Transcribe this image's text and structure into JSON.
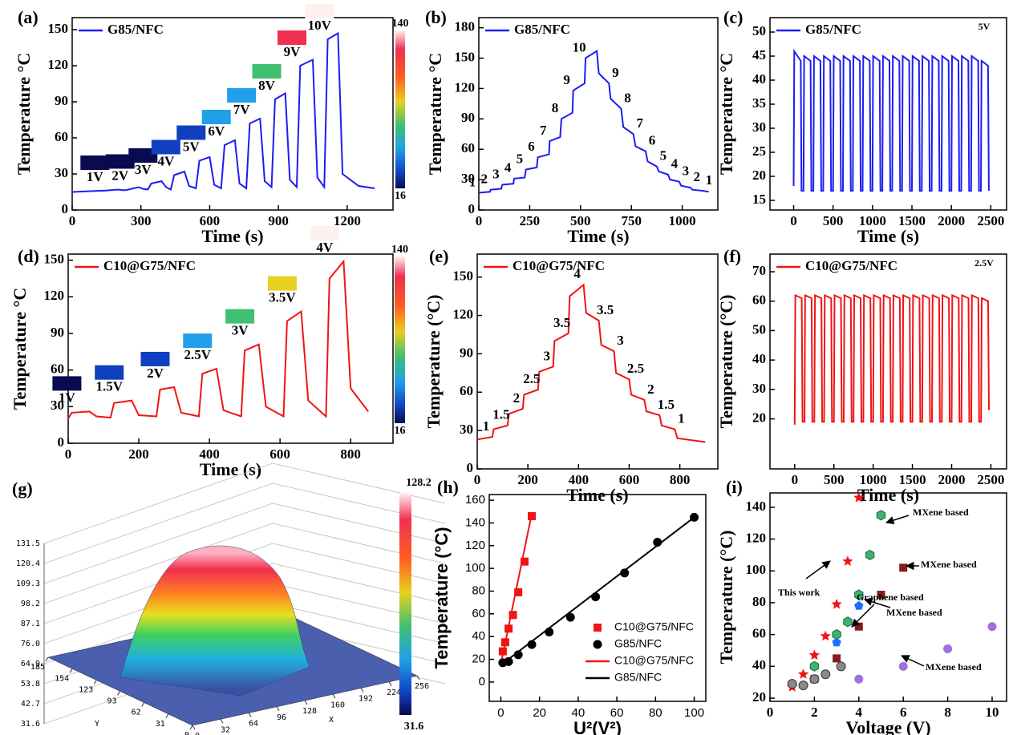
{
  "chart_data": [
    {
      "type": "line",
      "panel": "(a)",
      "xlabel": "Time (s)",
      "ylabel": "Temperature °C",
      "xlim": [
        0,
        1400
      ],
      "ylim": [
        0,
        160
      ],
      "xticks": [
        0,
        300,
        600,
        900,
        1200
      ],
      "yticks": [
        0,
        30,
        60,
        90,
        120,
        150
      ],
      "legend": "upper left",
      "series": [
        {
          "name": "G85/NFC",
          "color": "#1c1cf5",
          "x": [
            0,
            120,
            135,
            200,
            220,
            230,
            245,
            290,
            310,
            330,
            345,
            390,
            410,
            430,
            445,
            490,
            510,
            540,
            555,
            600,
            620,
            650,
            665,
            710,
            730,
            760,
            775,
            820,
            840,
            870,
            885,
            930,
            950,
            980,
            995,
            1050,
            1070,
            1100,
            1115,
            1160,
            1180,
            1250,
            1320
          ],
          "values": [
            15,
            16,
            16,
            17,
            16.5,
            16.5,
            17,
            19,
            17.5,
            17,
            22,
            24,
            19,
            17,
            29,
            32,
            20,
            18,
            41,
            44,
            21,
            18,
            54,
            58,
            22,
            18,
            72,
            76,
            24,
            19,
            92,
            97,
            25,
            19,
            120,
            125,
            27,
            19,
            142,
            147,
            30,
            20,
            18
          ]
        }
      ],
      "annotations": [
        "1V",
        "2V",
        "3V",
        "4V",
        "5V",
        "6V",
        "7V",
        "8V",
        "9V",
        "10V"
      ],
      "colorbar": {
        "max": 140,
        "min": 16
      }
    },
    {
      "type": "line",
      "panel": "(b)",
      "xlabel": "Time (s)",
      "ylabel": "Temperature °C",
      "xlim": [
        0,
        1175
      ],
      "ylim": [
        0,
        190
      ],
      "xticks": [
        0,
        250,
        500,
        750,
        1000
      ],
      "yticks": [
        0,
        30,
        60,
        90,
        120,
        150,
        180
      ],
      "legend": "upper left",
      "series": [
        {
          "name": "G85/NFC",
          "color": "#1c1cf5",
          "x": [
            0,
            55,
            58,
            110,
            116,
            170,
            174,
            225,
            232,
            285,
            290,
            345,
            348,
            400,
            406,
            460,
            464,
            520,
            525,
            580,
            590,
            640,
            648,
            700,
            710,
            760,
            770,
            820,
            830,
            875,
            885,
            930,
            940,
            985,
            995,
            1040,
            1050,
            1100,
            1130
          ],
          "values": [
            17,
            18,
            20,
            21,
            25,
            26,
            31,
            32,
            40,
            42,
            52,
            55,
            68,
            72,
            90,
            96,
            118,
            125,
            150,
            157,
            135,
            125,
            110,
            100,
            82,
            75,
            63,
            58,
            48,
            43,
            38,
            35,
            30,
            28,
            24,
            22,
            20,
            19,
            18
          ]
        }
      ],
      "annotations": [
        "1",
        "2",
        "3",
        "4",
        "5",
        "6",
        "7",
        "8",
        "9",
        "10",
        "9",
        "8",
        "7",
        "6",
        "5",
        "4",
        "3",
        "2",
        "1"
      ]
    },
    {
      "type": "line",
      "panel": "(c)",
      "xlabel": "Time (s)",
      "ylabel": "Temperature °C",
      "xlim": [
        -300,
        2700
      ],
      "ylim": [
        13,
        53
      ],
      "xticks": [
        0,
        500,
        1000,
        1500,
        2000,
        2500
      ],
      "yticks": [
        15,
        20,
        25,
        30,
        35,
        40,
        45,
        50
      ],
      "legend": "upper left",
      "series": [
        {
          "name": "G85/NFC",
          "color": "#1c1cf5",
          "x": [
            0,
            8,
            90,
            100,
            125,
            133,
            215,
            225,
            250,
            258,
            340,
            350,
            375,
            383,
            465,
            475,
            500,
            508,
            590,
            600,
            625,
            633,
            715,
            725,
            750,
            758,
            840,
            850,
            875,
            883,
            965,
            975,
            1000,
            1008,
            1090,
            1100,
            1125,
            1133,
            1215,
            1225,
            1250,
            1258,
            1340,
            1350,
            1375,
            1383,
            1465,
            1475,
            1500,
            1508,
            1590,
            1600,
            1625,
            1633,
            1715,
            1725,
            1750,
            1758,
            1840,
            1850,
            1875,
            1883,
            1965,
            1975,
            2000,
            2008,
            2090,
            2100,
            2125,
            2133,
            2215,
            2225,
            2250,
            2258,
            2340,
            2350,
            2375,
            2383,
            2465,
            2475
          ],
          "values": [
            18,
            46,
            44,
            17,
            17,
            45,
            44,
            17,
            17,
            45,
            44,
            17,
            17,
            45,
            44,
            17,
            17,
            45,
            44,
            17,
            17,
            45,
            44,
            17,
            17,
            45,
            44,
            17,
            17,
            45,
            44,
            17,
            17,
            45,
            44,
            17,
            17,
            45,
            44,
            17,
            17,
            45,
            44,
            17,
            17,
            45,
            44,
            17,
            17,
            45,
            44,
            17,
            17,
            45,
            44,
            17,
            17,
            45,
            44,
            17,
            17,
            45,
            44,
            17,
            17,
            45,
            44,
            17,
            17,
            45,
            44,
            17,
            17,
            45,
            44,
            17,
            17,
            44,
            43,
            17
          ]
        }
      ],
      "annotations": [
        "5V"
      ]
    },
    {
      "type": "line",
      "panel": "(d)",
      "xlabel": "Time (s)",
      "ylabel": "Temperature °C",
      "xlim": [
        0,
        920
      ],
      "ylim": [
        0,
        155
      ],
      "xticks": [
        0,
        200,
        400,
        600,
        800
      ],
      "yticks": [
        0,
        30,
        60,
        90,
        120,
        150
      ],
      "legend": "upper left",
      "series": [
        {
          "name": "C10@G75/NFC",
          "color": "#f01414",
          "x": [
            0,
            10,
            60,
            80,
            120,
            130,
            180,
            200,
            250,
            260,
            300,
            320,
            370,
            380,
            420,
            440,
            490,
            500,
            540,
            560,
            610,
            620,
            660,
            680,
            730,
            740,
            780,
            800,
            850
          ],
          "values": [
            20,
            25,
            26,
            22,
            21,
            33,
            35,
            23,
            22,
            44,
            46,
            25,
            22,
            57,
            61,
            27,
            22,
            76,
            81,
            30,
            22,
            100,
            108,
            35,
            22,
            135,
            149,
            45,
            26
          ]
        }
      ],
      "annotations": [
        "1V",
        "1.5V",
        "2V",
        "2.5V",
        "3V",
        "3.5V",
        "4V"
      ],
      "colorbar": {
        "max": 140,
        "min": 16
      }
    },
    {
      "type": "line",
      "panel": "(e)",
      "xlabel": "Time (s)",
      "ylabel": "Temperature (°C)",
      "xlim": [
        0,
        950
      ],
      "ylim": [
        0,
        168
      ],
      "xticks": [
        0,
        200,
        400,
        600,
        800
      ],
      "yticks": [
        0,
        30,
        60,
        90,
        120,
        150
      ],
      "legend": "upper left",
      "series": [
        {
          "name": "C10@G75/NFC",
          "color": "#f01414",
          "x": [
            0,
            60,
            65,
            120,
            125,
            180,
            185,
            240,
            245,
            300,
            305,
            360,
            365,
            420,
            430,
            480,
            490,
            540,
            548,
            600,
            608,
            660,
            668,
            720,
            728,
            780,
            790,
            900
          ],
          "values": [
            23,
            25,
            31,
            34,
            43,
            47,
            58,
            62,
            76,
            80,
            100,
            106,
            135,
            144,
            122,
            116,
            97,
            92,
            75,
            70,
            58,
            54,
            45,
            42,
            34,
            31,
            24,
            21
          ]
        }
      ],
      "annotations": [
        "1",
        "1.5",
        "2",
        "2.5",
        "3",
        "3.5",
        "4",
        "3.5",
        "3",
        "2.5",
        "2",
        "1.5",
        "1"
      ]
    },
    {
      "type": "line",
      "panel": "(f)",
      "xlabel": "Time (s)",
      "ylabel": "Temperature (°C)",
      "xlim": [
        -315,
        2700
      ],
      "ylim": [
        3,
        76
      ],
      "xticks": [
        0,
        500,
        1000,
        1500,
        2000,
        2500
      ],
      "yticks": [
        20,
        30,
        40,
        50,
        60,
        70
      ],
      "legend": "upper left",
      "series": [
        {
          "name": "C10@G75/NFC",
          "color": "#f01414",
          "x": [
            0,
            8,
            90,
            100,
            125,
            133,
            215,
            225,
            250,
            258,
            340,
            350,
            375,
            383,
            465,
            475,
            500,
            508,
            590,
            600,
            625,
            633,
            715,
            725,
            750,
            758,
            840,
            850,
            875,
            883,
            965,
            975,
            1000,
            1008,
            1090,
            1100,
            1125,
            1133,
            1215,
            1225,
            1250,
            1258,
            1340,
            1350,
            1375,
            1383,
            1465,
            1475,
            1500,
            1508,
            1590,
            1600,
            1625,
            1633,
            1715,
            1725,
            1750,
            1758,
            1840,
            1850,
            1875,
            1883,
            1965,
            1975,
            2000,
            2008,
            2090,
            2100,
            2125,
            2133,
            2215,
            2225,
            2250,
            2258,
            2340,
            2350,
            2375,
            2383,
            2465,
            2475
          ],
          "values": [
            18,
            62,
            61,
            19,
            19,
            62,
            61,
            19,
            19,
            62,
            61,
            19,
            19,
            62,
            61,
            19,
            19,
            62,
            61,
            19,
            19,
            62,
            61,
            19,
            19,
            62,
            61,
            19,
            19,
            62,
            61,
            19,
            19,
            62,
            61,
            19,
            19,
            62,
            61,
            19,
            19,
            62,
            61,
            19,
            19,
            62,
            61,
            19,
            19,
            62,
            61,
            19,
            19,
            62,
            61,
            19,
            19,
            62,
            61,
            19,
            19,
            62,
            61,
            19,
            19,
            62,
            61,
            19,
            19,
            62,
            61,
            19,
            19,
            62,
            61,
            19,
            19,
            61,
            60,
            23
          ]
        }
      ],
      "annotations": [
        "2.5V"
      ]
    },
    {
      "type": "surface",
      "panel": "(g)",
      "xlabel": "X",
      "ylabel": "Y",
      "xlim": [
        0,
        256
      ],
      "ylim": [
        0,
        185
      ],
      "zlim": [
        31.6,
        131.5
      ],
      "xticks": [
        0,
        32,
        64,
        96,
        128,
        160,
        192,
        224,
        256
      ],
      "yticks": [
        0,
        31,
        62,
        93,
        123,
        154,
        185
      ],
      "zticks": [
        31.6,
        42.7,
        53.8,
        64.9,
        {
          "value": 76,
          "label": "76.0"
        },
        87.1,
        98.2,
        109.3,
        120.4,
        131.5
      ],
      "colorbar": {
        "max": 128.2,
        "min": 31.6
      }
    },
    {
      "type": "scatter",
      "panel": "(h)",
      "xlabel": "U²(V²)",
      "ylabel": "Temperature (°C)",
      "xlim": [
        -6,
        106
      ],
      "ylim": [
        -17,
        165
      ],
      "xticks": [
        0,
        20,
        40,
        60,
        80,
        100
      ],
      "yticks": [
        0,
        20,
        40,
        60,
        80,
        100,
        120,
        140,
        160
      ],
      "legend": "lower right",
      "series": [
        {
          "name": "C10@G75/NFC",
          "marker": "square",
          "color": "#f01414",
          "x": [
            1,
            2.25,
            4,
            6.25,
            9,
            12.25,
            16
          ],
          "values": [
            27,
            35,
            47,
            59,
            79,
            106,
            146
          ]
        },
        {
          "name": "G85/NFC",
          "marker": "circle",
          "color": "#000000",
          "x": [
            1,
            4,
            9,
            16,
            25,
            36,
            49,
            64,
            81,
            100
          ],
          "values": [
            17,
            18,
            24,
            33,
            44,
            57,
            75,
            96,
            123,
            145
          ]
        },
        {
          "name": "C10@G75/NFC",
          "marker": "line",
          "color": "#f01414",
          "x": [
            0.5,
            16
          ],
          "values": [
            20,
            148
          ]
        },
        {
          "name": "G85/NFC",
          "marker": "line",
          "color": "#000000",
          "x": [
            0,
            100
          ],
          "values": [
            15,
            145
          ]
        }
      ]
    },
    {
      "type": "scatter",
      "panel": "(i)",
      "xlabel": "Voltage (V)",
      "ylabel": "Temperature (°C)",
      "xlim": [
        0,
        10.65
      ],
      "ylim": [
        18,
        149
      ],
      "xticks": [
        0,
        2,
        4,
        6,
        8,
        10
      ],
      "yticks": [
        20,
        40,
        60,
        80,
        100,
        120,
        140
      ],
      "series": [
        {
          "marker": "star",
          "color": "#f01414",
          "x": [
            1,
            1.5,
            2,
            2.5,
            3,
            3.5,
            4
          ],
          "values": [
            27,
            35,
            47,
            59,
            79,
            106,
            146
          ]
        },
        {
          "marker": "hexagon",
          "color": "#3cb371",
          "x": [
            2,
            3,
            3.5,
            4,
            4.5,
            5
          ],
          "values": [
            40,
            60,
            68,
            85,
            110,
            135
          ]
        },
        {
          "marker": "square",
          "color": "#8b1a1a",
          "x": [
            2,
            3,
            4,
            5,
            6
          ],
          "values": [
            32,
            45,
            65,
            85,
            102
          ]
        },
        {
          "marker": "pentagon",
          "color": "#1e6fff",
          "x": [
            3,
            4
          ],
          "values": [
            55,
            78
          ]
        },
        {
          "marker": "circle",
          "color": "#8a8a8a",
          "x": [
            1,
            1.5,
            2,
            2.5,
            3.2
          ],
          "values": [
            29,
            28,
            32,
            35,
            40
          ]
        },
        {
          "marker": "circle",
          "color": "#a070e0",
          "x": [
            4,
            6,
            8,
            10
          ],
          "values": [
            32,
            40,
            51,
            65
          ]
        }
      ],
      "annotations": [
        "MXene based",
        "MXene based",
        "MXene based",
        "MXene based",
        "Graphene based",
        "This work"
      ]
    }
  ]
}
